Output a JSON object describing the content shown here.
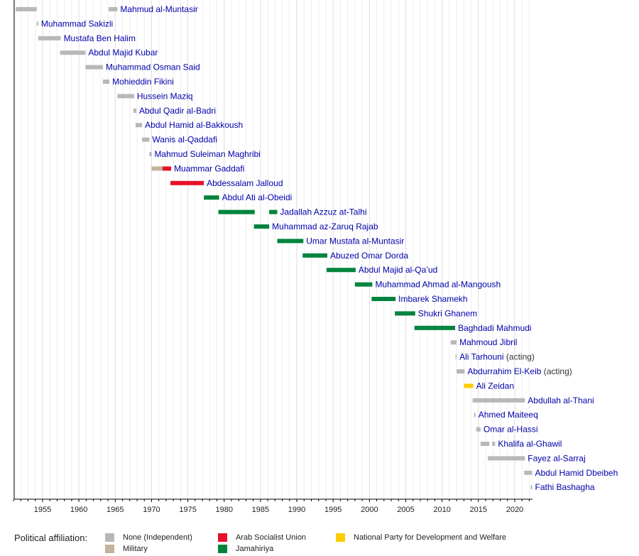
{
  "chart_data": {
    "type": "timeline",
    "title": "",
    "xlabel": "",
    "ylabel": "",
    "xlim": [
      1951.0,
      2022.5
    ],
    "grid": true,
    "x_ticks_major": [
      1955,
      1960,
      1965,
      1970,
      1975,
      1980,
      1985,
      1990,
      1995,
      2000,
      2005,
      2010,
      2015,
      2020
    ],
    "x_ticks_minor_step": 1,
    "legend_position": "bottom",
    "legend_title": "Political affiliation:",
    "affiliations": {
      "none": {
        "label": "None (Independent)",
        "color": "#b8b8b8"
      },
      "military": {
        "label": "Military",
        "color": "#c2b49a"
      },
      "asu": {
        "label": "Arab Socialist Union",
        "color": "#e8112d"
      },
      "jamahiriya": {
        "label": "Jamahiriya",
        "color": "#00843d"
      },
      "npdw": {
        "label": "National Party for Development and Welfare",
        "color": "#ffcc00"
      }
    },
    "legend_order": [
      [
        "none",
        "military"
      ],
      [
        "asu",
        "jamahiriya"
      ],
      [
        "npdw"
      ]
    ],
    "rows": [
      {
        "name": "Mahmud al-Muntasir",
        "note": "",
        "terms": [
          {
            "start": 1951.3,
            "end": 1954.2,
            "aff": "none"
          },
          {
            "start": 1964.1,
            "end": 1965.3,
            "aff": "none"
          }
        ]
      },
      {
        "name": "Muhammad Sakizli",
        "note": "",
        "terms": [
          {
            "start": 1954.2,
            "end": 1954.4,
            "aff": "none"
          }
        ]
      },
      {
        "name": "Mustafa Ben Halim",
        "note": "",
        "terms": [
          {
            "start": 1954.4,
            "end": 1957.5,
            "aff": "none"
          }
        ]
      },
      {
        "name": "Abdul Majid Kubar",
        "note": "",
        "terms": [
          {
            "start": 1957.4,
            "end": 1960.9,
            "aff": "none"
          }
        ]
      },
      {
        "name": "Muhammad Osman Said",
        "note": "",
        "terms": [
          {
            "start": 1960.9,
            "end": 1963.3,
            "aff": "none"
          }
        ]
      },
      {
        "name": "Mohieddin Fikini",
        "note": "",
        "terms": [
          {
            "start": 1963.3,
            "end": 1964.2,
            "aff": "none"
          }
        ]
      },
      {
        "name": "Hussein Maziq",
        "note": "",
        "terms": [
          {
            "start": 1965.3,
            "end": 1967.6,
            "aff": "none"
          }
        ]
      },
      {
        "name": "Abdul Qadir al-Badri",
        "note": "",
        "terms": [
          {
            "start": 1967.5,
            "end": 1967.9,
            "aff": "none"
          }
        ]
      },
      {
        "name": "Abdul Hamid al-Bakkoush",
        "note": "",
        "terms": [
          {
            "start": 1967.8,
            "end": 1968.7,
            "aff": "none"
          }
        ]
      },
      {
        "name": "Wanis al-Qaddafi",
        "note": "",
        "terms": [
          {
            "start": 1968.7,
            "end": 1969.7,
            "aff": "none"
          }
        ]
      },
      {
        "name": "Mahmud Suleiman Maghribi",
        "note": "",
        "terms": [
          {
            "start": 1969.7,
            "end": 1970.0,
            "aff": "none"
          }
        ]
      },
      {
        "name": "Muammar Gaddafi",
        "note": "",
        "terms": [
          {
            "start": 1970.0,
            "end": 1971.5,
            "aff": "military"
          },
          {
            "start": 1971.5,
            "end": 1972.7,
            "aff": "asu"
          }
        ]
      },
      {
        "name": "Abdessalam Jalloud",
        "note": "",
        "terms": [
          {
            "start": 1972.6,
            "end": 1977.2,
            "aff": "asu"
          }
        ]
      },
      {
        "name": "Abdul Ati al-Obeidi",
        "note": "",
        "terms": [
          {
            "start": 1977.2,
            "end": 1979.3,
            "aff": "jamahiriya"
          }
        ]
      },
      {
        "name": "Jadallah Azzuz at-Talhi",
        "note": "",
        "terms": [
          {
            "start": 1979.2,
            "end": 1984.2,
            "aff": "jamahiriya"
          },
          {
            "start": 1986.2,
            "end": 1987.3,
            "aff": "jamahiriya"
          }
        ]
      },
      {
        "name": "Muhammad az-Zaruq Rajab",
        "note": "",
        "terms": [
          {
            "start": 1984.1,
            "end": 1986.2,
            "aff": "jamahiriya"
          }
        ]
      },
      {
        "name": "Umar Mustafa al-Muntasir",
        "note": "",
        "terms": [
          {
            "start": 1987.3,
            "end": 1990.9,
            "aff": "jamahiriya"
          }
        ]
      },
      {
        "name": "Abuzed Omar Dorda",
        "note": "",
        "terms": [
          {
            "start": 1990.8,
            "end": 1994.2,
            "aff": "jamahiriya"
          }
        ]
      },
      {
        "name": "Abdul Majid al-Qa’ud",
        "note": "",
        "terms": [
          {
            "start": 1994.1,
            "end": 1998.1,
            "aff": "jamahiriya"
          }
        ]
      },
      {
        "name": "Muhammad Ahmad al-Mangoush",
        "note": "",
        "terms": [
          {
            "start": 1998.0,
            "end": 2000.4,
            "aff": "jamahiriya"
          }
        ]
      },
      {
        "name": "Imbarek Shamekh",
        "note": "",
        "terms": [
          {
            "start": 2000.3,
            "end": 2003.6,
            "aff": "jamahiriya"
          }
        ]
      },
      {
        "name": "Shukri Ghanem",
        "note": "",
        "terms": [
          {
            "start": 2003.5,
            "end": 2006.3,
            "aff": "jamahiriya"
          }
        ]
      },
      {
        "name": "Baghdadi Mahmudi",
        "note": "",
        "terms": [
          {
            "start": 2006.2,
            "end": 2011.8,
            "aff": "jamahiriya"
          }
        ]
      },
      {
        "name": "Mahmoud Jibril",
        "note": "",
        "terms": [
          {
            "start": 2011.2,
            "end": 2012.0,
            "aff": "none"
          }
        ]
      },
      {
        "name": "Ali Tarhouni",
        "note": "(acting)",
        "terms": [
          {
            "start": 2011.85,
            "end": 2012.0,
            "aff": "none"
          }
        ]
      },
      {
        "name": "Abdurrahim El-Keib",
        "note": "(acting)",
        "terms": [
          {
            "start": 2012.0,
            "end": 2013.1,
            "aff": "none"
          }
        ]
      },
      {
        "name": "Ali Zeidan",
        "note": "",
        "terms": [
          {
            "start": 2013.0,
            "end": 2014.3,
            "aff": "npdw"
          }
        ]
      },
      {
        "name": "Abdullah al-Thani",
        "note": "",
        "terms": [
          {
            "start": 2014.2,
            "end": 2021.4,
            "aff": "none"
          }
        ]
      },
      {
        "name": "Ahmed Maiteeq",
        "note": "",
        "terms": [
          {
            "start": 2014.4,
            "end": 2014.6,
            "aff": "none"
          }
        ]
      },
      {
        "name": "Omar al-Hassi",
        "note": "",
        "terms": [
          {
            "start": 2014.7,
            "end": 2015.3,
            "aff": "none"
          }
        ]
      },
      {
        "name": "Khalifa al-Ghawil",
        "note": "",
        "terms": [
          {
            "start": 2015.3,
            "end": 2016.5,
            "aff": "none"
          },
          {
            "start": 2016.9,
            "end": 2017.3,
            "aff": "none"
          }
        ]
      },
      {
        "name": "Fayez al-Sarraj",
        "note": "",
        "terms": [
          {
            "start": 2016.3,
            "end": 2021.4,
            "aff": "none"
          }
        ]
      },
      {
        "name": "Abdul Hamid Dbeibeh",
        "note": "",
        "terms": [
          {
            "start": 2021.3,
            "end": 2022.4,
            "aff": "none"
          }
        ]
      },
      {
        "name": "Fathi Bashagha",
        "note": "",
        "terms": [
          {
            "start": 2022.2,
            "end": 2022.4,
            "aff": "none"
          }
        ]
      }
    ]
  }
}
